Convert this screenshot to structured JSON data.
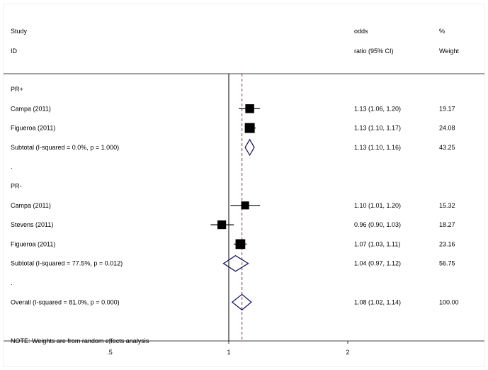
{
  "chart_data": {
    "type": "forest",
    "header": {
      "study_line1": "Study",
      "study_line2": "ID",
      "effect_line1": "odds",
      "effect_line2": "ratio (95% CI)",
      "weight_line1": "%",
      "weight_line2": "Weight"
    },
    "rows": [
      {
        "kind": "group",
        "label": "PR+"
      },
      {
        "kind": "study",
        "label": "Campa (2011)",
        "or": 1.13,
        "lo": 1.06,
        "hi": 1.2,
        "ci_text": "1.13 (1.06, 1.20)",
        "weight": "19.17"
      },
      {
        "kind": "study",
        "label": "Figueroa (2011)",
        "or": 1.13,
        "lo": 1.1,
        "hi": 1.17,
        "ci_text": "1.13 (1.10, 1.17)",
        "weight": "24.08"
      },
      {
        "kind": "subtotal",
        "label": "Subtotal  (I-squared = 0.0%, p = 1.000)",
        "or": 1.13,
        "lo": 1.1,
        "hi": 1.16,
        "ci_text": "1.13 (1.10, 1.16)",
        "weight": "43.25"
      },
      {
        "kind": "spacer",
        "label": "."
      },
      {
        "kind": "group",
        "label": "PR-"
      },
      {
        "kind": "study",
        "label": "Campa (2011)",
        "or": 1.1,
        "lo": 1.01,
        "hi": 1.2,
        "ci_text": "1.10 (1.01, 1.20)",
        "weight": "15.32"
      },
      {
        "kind": "study",
        "label": "Stevens (2011)",
        "or": 0.96,
        "lo": 0.9,
        "hi": 1.03,
        "ci_text": "0.96 (0.90, 1.03)",
        "weight": "18.27"
      },
      {
        "kind": "study",
        "label": "Figueroa (2011)",
        "or": 1.07,
        "lo": 1.03,
        "hi": 1.11,
        "ci_text": "1.07 (1.03, 1.11)",
        "weight": "23.16"
      },
      {
        "kind": "subtotal",
        "label": "Subtotal  (I-squared = 77.5%, p = 0.012)",
        "or": 1.04,
        "lo": 0.97,
        "hi": 1.12,
        "ci_text": "1.04 (0.97, 1.12)",
        "weight": "56.75"
      },
      {
        "kind": "spacer",
        "label": "."
      },
      {
        "kind": "overall",
        "label": "Overall  (I-squared = 81.0%, p = 0.000)",
        "or": 1.08,
        "lo": 1.02,
        "hi": 1.14,
        "ci_text": "1.08 (1.02, 1.14)",
        "weight": "100.00"
      },
      {
        "kind": "spacer",
        "label": ""
      },
      {
        "kind": "note",
        "label": "NOTE: Weights are from random effects analysis"
      }
    ],
    "x_ticks": [
      {
        "value": 0.5,
        "label": ".5"
      },
      {
        "value": 1,
        "label": "1"
      },
      {
        "value": 2,
        "label": "2"
      }
    ],
    "x_scale": "log",
    "null_line": 1,
    "overall_line": 1.08,
    "colors": {
      "square": "#000000",
      "diamond": "#1a1a66",
      "overall_line": "#8b2a4a",
      "axis": "#000000"
    }
  }
}
